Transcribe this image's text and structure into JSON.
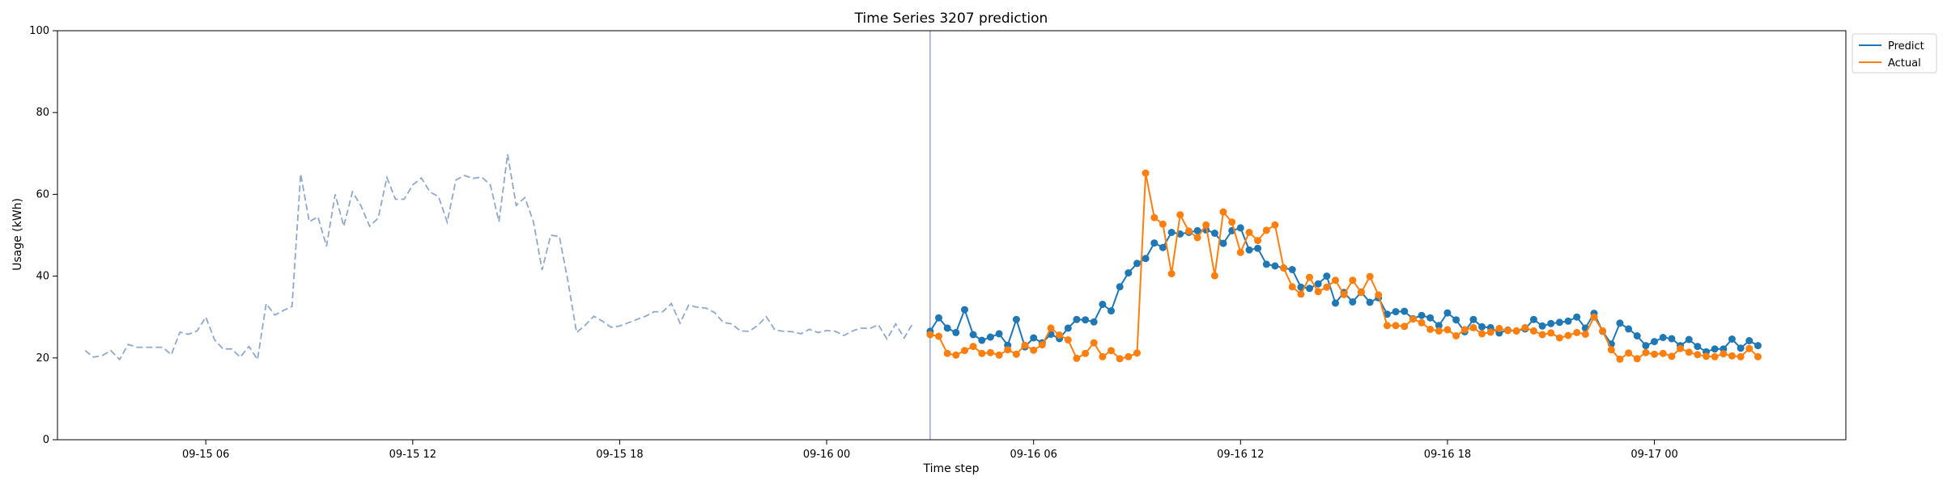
{
  "chart_data": {
    "type": "line",
    "title": "Time Series 3207 prediction",
    "xlabel": "Time step",
    "ylabel": "Usage (kWh)",
    "ylim": [
      0,
      100
    ],
    "xlim": [
      "09-15 01:42",
      "09-17 05:33"
    ],
    "yticks": [
      0,
      20,
      40,
      60,
      80,
      100
    ],
    "xticks": [
      {
        "t": "09-15 06:00",
        "label": "09-15 06"
      },
      {
        "t": "09-15 12:00",
        "label": "09-15 12"
      },
      {
        "t": "09-15 18:00",
        "label": "09-15 18"
      },
      {
        "t": "09-16 00:00",
        "label": "09-16 00"
      },
      {
        "t": "09-16 06:00",
        "label": "09-16 06"
      },
      {
        "t": "09-16 12:00",
        "label": "09-16 12"
      },
      {
        "t": "09-16 18:00",
        "label": "09-16 18"
      },
      {
        "t": "09-17 00:00",
        "label": "09-17 00"
      }
    ],
    "grid": false,
    "legend_position": "outside-top-right",
    "forecast_start": "09-16 03:00",
    "interval_minutes": 15,
    "history": {
      "start": "09-15 02:30",
      "color": "#8fa9cc",
      "style": "dashed",
      "values": [
        21.8,
        20.2,
        20.6,
        21.8,
        19.6,
        23.3,
        22.6,
        22.6,
        22.6,
        22.6,
        20.8,
        26.3,
        25.8,
        26.6,
        30,
        24.5,
        22.2,
        22.2,
        20.2,
        22.8,
        19.6,
        33.3,
        30.5,
        31.6,
        32.6,
        65,
        53.3,
        54.5,
        47.3,
        60,
        52.2,
        60.6,
        57.2,
        52.2,
        54.2,
        64.1,
        58.8,
        58.8,
        62.3,
        64,
        60.6,
        59.4,
        53.2,
        63.5,
        64.6,
        63.9,
        64.2,
        62.3,
        53.3,
        69.8,
        57.3,
        59.2,
        53.3,
        41.5,
        50,
        49.7,
        38.8,
        26.2,
        28,
        30.2,
        29,
        27.5,
        27.8,
        28.6,
        29.4,
        30.2,
        31.3,
        31.3,
        33.3,
        28.5,
        32.9,
        32.4,
        32.2,
        31.1,
        28.7,
        28.3,
        26.6,
        26.5,
        27.9,
        30.1,
        26.8,
        26.5,
        26.4,
        25.9,
        27,
        26.2,
        26.7,
        26.5,
        25.5,
        26.6,
        27.3,
        27.2,
        28.1,
        24.6,
        28.3,
        24.9,
        28.5
      ]
    },
    "series": [
      {
        "name": "Predict",
        "color": "#1f77b4",
        "start": "09-16 03:00",
        "values": [
          26.5,
          29.8,
          27.3,
          26.2,
          31.8,
          25.7,
          24.3,
          25.1,
          25.9,
          23.1,
          29.4,
          22.7,
          24.9,
          23.7,
          25.8,
          24.7,
          27.3,
          29.4,
          29.3,
          28.8,
          33.1,
          31.5,
          37.4,
          40.8,
          43.1,
          44.3,
          48.1,
          47.0,
          50.7,
          50.3,
          50.7,
          51.1,
          51.3,
          50.5,
          48.0,
          51.1,
          51.8,
          46.4,
          46.8,
          42.9,
          42.5,
          42.0,
          41.6,
          37.3,
          37.0,
          38.1,
          40.0,
          33.4,
          36.0,
          33.7,
          36.1,
          33.6,
          34.7,
          30.7,
          31.3,
          31.4,
          29.6,
          30.4,
          29.8,
          27.9,
          31.0,
          29.3,
          26.4,
          29.4,
          27.6,
          27.4,
          26.1,
          26.8,
          26.6,
          27.1,
          29.4,
          27.8,
          28.4,
          28.7,
          29.0,
          30.0,
          27.3,
          30.9,
          26.5,
          23.4,
          28.5,
          27.1,
          25.4,
          23.0,
          24.0,
          25.0,
          24.7,
          23.0,
          24.5,
          22.8,
          21.5,
          22.2,
          22.2,
          24.6,
          22.4,
          24.2,
          23.0
        ]
      },
      {
        "name": "Actual",
        "color": "#ff7f0e",
        "start": "09-16 03:00",
        "values": [
          25.7,
          25.3,
          21.1,
          20.7,
          21.8,
          22.8,
          21.1,
          21.3,
          20.7,
          22.0,
          20.9,
          23.1,
          21.9,
          23.2,
          27.3,
          25.6,
          24.4,
          19.9,
          21.1,
          23.7,
          20.3,
          21.8,
          19.8,
          20.3,
          21.2,
          65.2,
          54.3,
          52.7,
          40.6,
          55.0,
          51.0,
          49.4,
          52.5,
          40.1,
          55.7,
          53.2,
          45.8,
          50.7,
          48.7,
          51.2,
          52.5,
          42.0,
          37.4,
          35.6,
          39.7,
          36.2,
          37.3,
          39.0,
          35.5,
          39.0,
          36.0,
          39.9,
          35.4,
          27.9,
          27.9,
          27.7,
          29.5,
          28.6,
          27.0,
          26.6,
          26.9,
          25.4,
          26.9,
          27.4,
          25.9,
          26.3,
          27.2,
          26.7,
          26.6,
          27.4,
          26.6,
          25.7,
          26.1,
          24.9,
          25.5,
          26.2,
          25.8,
          30.0,
          26.6,
          22.0,
          19.7,
          21.2,
          19.8,
          21.3,
          20.9,
          21.1,
          20.4,
          22.3,
          21.4,
          20.8,
          20.4,
          20.3,
          21.0,
          20.5,
          20.3,
          22.3,
          20.3
        ]
      }
    ]
  }
}
